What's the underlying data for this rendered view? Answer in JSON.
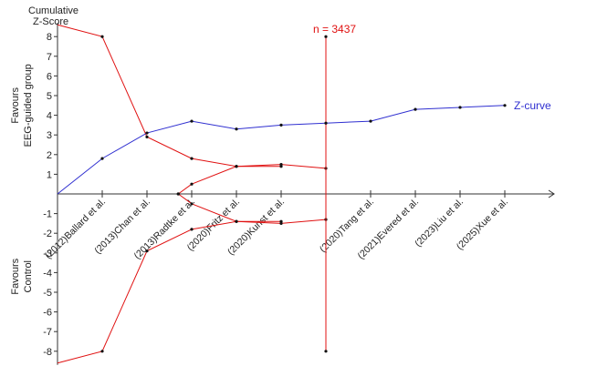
{
  "chart_data": {
    "type": "line",
    "y_title_lines": [
      "Cumulative",
      "Z-Score"
    ],
    "side_labels": {
      "upper": [
        "Favours",
        "EEG-guided group"
      ],
      "lower": [
        "Favours",
        "Control"
      ]
    },
    "ylim": [
      -8.6,
      8.6
    ],
    "y_ticks": [
      8,
      7,
      6,
      5,
      4,
      3,
      2,
      1,
      -1,
      -2,
      -3,
      -4,
      -5,
      -6,
      -7,
      -8
    ],
    "y_tick_labels": [
      "8",
      "7",
      "6",
      "5",
      "4",
      "3",
      "2",
      "1",
      "-1",
      "-2",
      "-3",
      "-4",
      "-5",
      "-6",
      "-7",
      "-8"
    ],
    "x_max": 11,
    "categories": [
      "(2012)Ballard et al.",
      "(2013)Chan et al.",
      "(2013)Radtke et al.",
      "(2020)Fritz et al.",
      "(2020)Kunst et al.",
      "",
      "(2020)Tang et al.",
      "(2021)Evered et al.",
      "(2023)Liu et al.",
      "(2025)Xue et al."
    ],
    "z_curve": {
      "name": "Z-curve",
      "color": "#2f2fd0",
      "x": [
        0,
        1,
        2,
        3,
        4,
        5,
        6,
        7,
        8,
        9,
        10
      ],
      "y": [
        0,
        1.8,
        3.1,
        3.7,
        3.3,
        3.5,
        3.6,
        3.7,
        4.3,
        4.4,
        4.5
      ]
    },
    "boundaries": {
      "color": "#e01010",
      "upper_monitoring": {
        "x": [
          0,
          1,
          2,
          3,
          4,
          5
        ],
        "y": [
          8.6,
          8.0,
          2.9,
          1.8,
          1.4,
          1.4
        ]
      },
      "lower_monitoring": {
        "x": [
          0,
          1,
          2,
          3,
          4,
          5
        ],
        "y": [
          -8.6,
          -8.0,
          -2.9,
          -1.8,
          -1.4,
          -1.4
        ]
      },
      "upper_futility": {
        "x": [
          2.7,
          3,
          4,
          5,
          6
        ],
        "y": [
          0,
          0.5,
          1.4,
          1.5,
          1.3
        ]
      },
      "lower_futility": {
        "x": [
          2.7,
          3,
          4,
          5,
          6
        ],
        "y": [
          0,
          -0.5,
          -1.4,
          -1.5,
          -1.3
        ]
      },
      "upper_final": {
        "x": [
          3,
          4,
          5,
          6
        ],
        "y": [
          -0.5,
          -1.4,
          -1.4,
          -1.3
        ]
      },
      "lower_final": {
        "x": [
          3,
          4,
          5,
          6
        ],
        "y": [
          -0.5,
          -1.4,
          -1.4,
          -1.3
        ]
      }
    },
    "required_information_size": {
      "label": "n = 3437",
      "x": 6,
      "y_top": 8,
      "y_bottom": -8,
      "color": "#e01010"
    },
    "grid": false,
    "legend": "right of curve end"
  }
}
